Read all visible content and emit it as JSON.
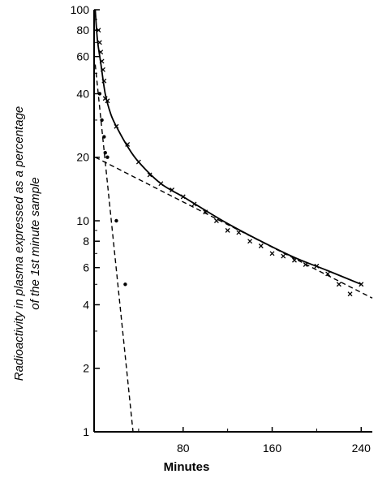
{
  "chart_data": {
    "type": "scatter",
    "title": "",
    "xlabel": "Minutes",
    "ylabel": [
      "Radioactivity in plasma expressed as a percentage",
      "of the 1st minute sample"
    ],
    "xlim": [
      0,
      250
    ],
    "ylim": [
      1,
      100
    ],
    "yscale": "log",
    "grid": false,
    "x_ticks": [
      80,
      160,
      240
    ],
    "x_tick_labels": [
      "80",
      "160",
      "240"
    ],
    "y_ticks": [
      1,
      2,
      4,
      6,
      8,
      10,
      20,
      40,
      60,
      80,
      100
    ],
    "y_tick_labels": [
      "1",
      "2",
      "4",
      "6",
      "8",
      "10",
      "20",
      "40",
      "60",
      "80",
      "100"
    ],
    "series": [
      {
        "marker": "x",
        "x": [
          4,
          5,
          6,
          7,
          8,
          9,
          10,
          12,
          20,
          30,
          40,
          50,
          60,
          70,
          80,
          90,
          100,
          110,
          120,
          130,
          140,
          150,
          160,
          170,
          180,
          190,
          200,
          210,
          220,
          230,
          240
        ],
        "y": [
          80,
          70,
          63,
          57,
          52,
          46,
          38,
          37,
          28,
          23,
          19,
          16.5,
          15,
          14,
          13,
          12,
          11,
          10,
          9,
          8.8,
          8,
          7.6,
          7,
          6.8,
          6.5,
          6.2,
          6.1,
          5.6,
          5,
          4.5,
          5
        ]
      },
      {
        "marker": "dot",
        "x": [
          5,
          7,
          9,
          10,
          12,
          20,
          28
        ],
        "y": [
          40,
          30,
          25,
          21,
          20,
          10,
          5
        ]
      },
      {
        "style": "solid",
        "x": [
          1,
          3,
          6,
          10,
          15,
          20,
          30,
          40,
          60,
          80,
          100,
          120,
          150,
          180,
          210,
          240
        ],
        "y": [
          100,
          72,
          56,
          40,
          32,
          28,
          22.5,
          19,
          15,
          13,
          11.2,
          9.7,
          8,
          6.7,
          5.8,
          5
        ]
      },
      {
        "style": "dashed",
        "x": [
          1,
          250
        ],
        "y": [
          20,
          4.3
        ]
      },
      {
        "style": "dashed",
        "x": [
          1,
          35
        ],
        "y": [
          55,
          1
        ]
      }
    ]
  }
}
